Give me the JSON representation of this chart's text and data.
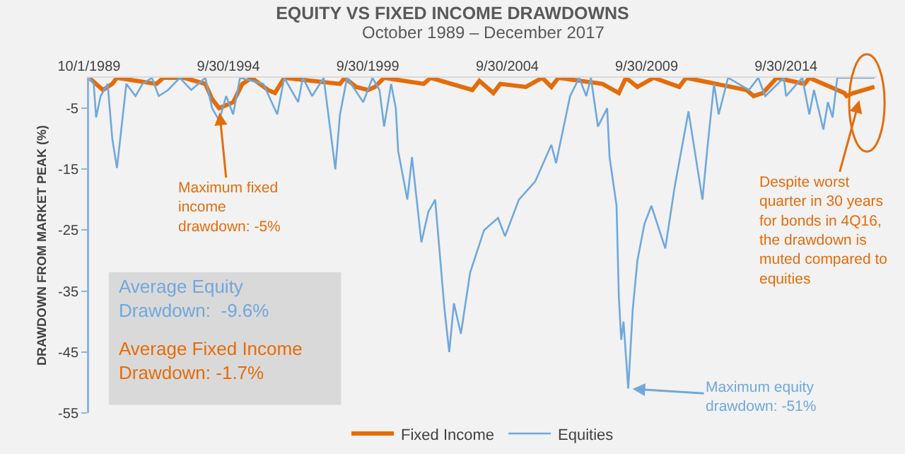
{
  "chart_data": {
    "type": "line",
    "title": "EQUITY VS FIXED INCOME DRAWDOWNS",
    "subtitle": "October 1989 – December 2017",
    "ylabel": "DRAWDOWN FROM MARKET PEAK (%)",
    "xlim": [
      "1989-10-01",
      "2017-12-31"
    ],
    "xticks": [
      {
        "value": "1989-10-01",
        "label": "10/1/1989"
      },
      {
        "value": "1994-09-30",
        "label": "9/30/1994"
      },
      {
        "value": "1999-09-30",
        "label": "9/30/1999"
      },
      {
        "value": "2004-09-30",
        "label": "9/30/2004"
      },
      {
        "value": "2009-09-30",
        "label": "9/30/2009"
      },
      {
        "value": "2014-09-30",
        "label": "9/30/2014"
      }
    ],
    "ylim": [
      -55,
      0
    ],
    "yticks": [
      -5,
      -15,
      -25,
      -35,
      -45,
      -55
    ],
    "grid": false,
    "legend": "bottom",
    "series": [
      {
        "name": "Fixed Income",
        "color": "#e46c0a",
        "x": [
          "1989-10",
          "1990-04",
          "1990-08",
          "1990-10",
          "1992-03",
          "1992-06",
          "1993-03",
          "1993-12",
          "1994-03",
          "1994-06",
          "1994-09",
          "1994-12",
          "1995-04",
          "1995-08",
          "1996-03",
          "1996-06",
          "1996-10",
          "1998-10",
          "1998-12",
          "1999-05",
          "1999-10",
          "2000-01",
          "2000-05",
          "2001-10",
          "2002-01",
          "2003-07",
          "2003-10",
          "2004-04",
          "2004-07",
          "2005-06",
          "2006-01",
          "2006-05",
          "2006-08",
          "2008-03",
          "2008-10",
          "2009-01",
          "2009-06",
          "2010-01",
          "2010-12",
          "2011-03",
          "2013-05",
          "2013-08",
          "2013-12",
          "2014-06",
          "2015-06",
          "2015-08",
          "2016-11",
          "2016-12",
          "2017-03",
          "2017-12"
        ],
        "values": [
          0,
          -2,
          -1,
          0,
          -1,
          0,
          0,
          -1,
          -3.5,
          -5,
          -4.5,
          -4,
          -1,
          0,
          -2,
          -2.5,
          0,
          -1,
          0,
          -1.5,
          -2,
          -1.5,
          0,
          -1,
          0,
          -2,
          -0.5,
          -2.5,
          -1,
          -1.5,
          0,
          -1.5,
          0,
          -1,
          -2.5,
          0,
          -1.5,
          0,
          -1.5,
          0,
          -2,
          -3,
          -2.5,
          0,
          -1,
          0,
          -2.5,
          -3,
          -2.5,
          -1.5
        ]
      },
      {
        "name": "Equities",
        "color": "#6fa8dc",
        "x": [
          "1989-10",
          "1989-12",
          "1990-01",
          "1990-03",
          "1990-06",
          "1990-08",
          "1990-10",
          "1990-12",
          "1991-02",
          "1991-06",
          "1991-09",
          "1992-01",
          "1992-04",
          "1992-08",
          "1993-01",
          "1993-06",
          "1993-12",
          "1994-03",
          "1994-06",
          "1994-09",
          "1994-12",
          "1995-03",
          "1996-01",
          "1996-07",
          "1996-10",
          "1997-04",
          "1997-06",
          "1997-10",
          "1998-03",
          "1998-08",
          "1998-10",
          "1999-01",
          "1999-08",
          "1999-12",
          "2000-03",
          "2000-05",
          "2000-08",
          "2000-10",
          "2000-11",
          "2001-03",
          "2001-05",
          "2001-09",
          "2001-12",
          "2002-03",
          "2002-07",
          "2002-09",
          "2002-11",
          "2003-02",
          "2003-06",
          "2003-12",
          "2004-06",
          "2004-09",
          "2005-03",
          "2005-10",
          "2006-05",
          "2006-07",
          "2007-01",
          "2007-05",
          "2007-08",
          "2007-10",
          "2008-01",
          "2008-05",
          "2008-06",
          "2008-09",
          "2008-10",
          "2008-11",
          "2008-12",
          "2009-02",
          "2009-04",
          "2009-06",
          "2009-09",
          "2009-12",
          "2010-06",
          "2010-10",
          "2011-04",
          "2011-10",
          "2011-12",
          "2012-03",
          "2012-05",
          "2012-09",
          "2013-06",
          "2013-10",
          "2014-01",
          "2014-09",
          "2014-10",
          "2015-05",
          "2015-08",
          "2015-10",
          "2016-02",
          "2016-04",
          "2016-06",
          "2016-08",
          "2017-03",
          "2017-12"
        ],
        "values": [
          0,
          -1,
          -6.5,
          -3,
          -1,
          -10,
          -14.8,
          -8,
          -1,
          -3,
          -1,
          0,
          -3,
          -2,
          0,
          -2,
          0,
          -5,
          -7,
          -3,
          -6,
          0,
          -1,
          -6,
          0,
          -4,
          0,
          -3,
          0,
          -15,
          -6,
          0,
          -4,
          0,
          -2,
          -8,
          -1,
          -5,
          -12,
          -20,
          -13,
          -27,
          -22,
          -20,
          -38,
          -45,
          -37,
          -42,
          -32,
          -25,
          -23,
          -26,
          -20,
          -17,
          -11,
          -14,
          -3,
          0,
          -3,
          0,
          -8,
          -5,
          -13,
          -21,
          -36,
          -43,
          -40,
          -51,
          -38,
          -30,
          -24,
          -21,
          -28,
          -18,
          -5.5,
          -20,
          -12,
          -1,
          -6,
          0,
          -2,
          0,
          -3,
          0,
          -3,
          0,
          -6,
          -2,
          -8.5,
          -4,
          -6.5,
          0,
          0,
          0
        ]
      }
    ],
    "annotations": [
      "Average Equity\nDrawdown:  -9.6%",
      "Average Fixed Income\nDrawdown: -1.7%",
      {
        "text": "Maximum fixed\nincome\ndrawdown: -5%",
        "x": "1994-06",
        "y": -5
      },
      {
        "text": "Despite worst\nquarter in 30 years\nfor bonds in 4Q16,\nthe drawdown is\nmuted compared to\nequities",
        "x": "2017-06",
        "y": -3
      },
      {
        "text": "Maximum equity\ndrawdown: -51%",
        "x": "2009-02",
        "y": -51
      }
    ]
  }
}
